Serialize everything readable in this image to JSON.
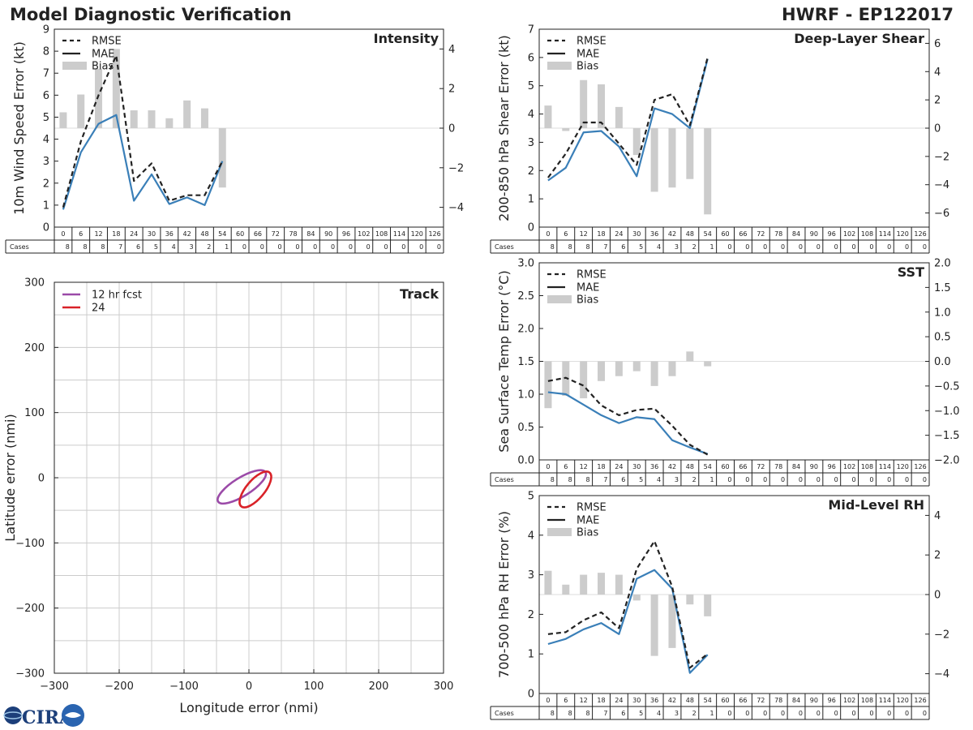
{
  "header": {
    "title": "Model Diagnostic Verification",
    "storm": "HWRF - EP122017"
  },
  "logo": {
    "text": "CIRA"
  },
  "legend_labels": {
    "rmse": "RMSE",
    "mae": "MAE",
    "bias": "Bias",
    "cases": "Cases"
  },
  "colors": {
    "mae": "#3a7fb8",
    "bias": "#cccccc",
    "rmse": "#222222",
    "track12": "#9b4aa8",
    "track24": "#d92228",
    "grid": "#cccccc"
  },
  "chart_data": [
    {
      "id": "intensity",
      "type": "line",
      "title": "Intensity",
      "ylabel": "10m Wind Speed Error (kt)",
      "ylim": [
        0,
        9
      ],
      "yticks": [
        0,
        1,
        2,
        3,
        4,
        5,
        6,
        7,
        8,
        9
      ],
      "y2lim": [
        -5,
        5
      ],
      "y2ticks": [
        -4,
        -2,
        0,
        2,
        4
      ],
      "y2ticklabels": [
        "−4",
        "−2",
        "0",
        "2",
        "4"
      ],
      "lead_times": [
        "0",
        "6",
        "12",
        "18",
        "24",
        "30",
        "36",
        "42",
        "48",
        "54",
        "60",
        "66",
        "72",
        "78",
        "84",
        "90",
        "96",
        "102",
        "108",
        "114",
        "120",
        "126"
      ],
      "cases": [
        "8",
        "8",
        "8",
        "7",
        "6",
        "5",
        "4",
        "3",
        "2",
        "1",
        "0",
        "0",
        "0",
        "0",
        "0",
        "0",
        "0",
        "0",
        "0",
        "0",
        "0",
        "0"
      ],
      "x": [
        0,
        6,
        12,
        18,
        24,
        30,
        36,
        42,
        48,
        54
      ],
      "rmse": [
        0.9,
        3.9,
        6.0,
        7.8,
        2.1,
        2.9,
        1.2,
        1.45,
        1.45,
        3.0
      ],
      "mae": [
        0.8,
        3.4,
        4.7,
        5.1,
        1.2,
        2.4,
        1.05,
        1.35,
        1.0,
        3.0
      ],
      "bias": [
        0.8,
        1.7,
        3.0,
        4.0,
        0.9,
        0.9,
        0.5,
        1.4,
        1.0,
        -3.0
      ]
    },
    {
      "id": "shear",
      "type": "line",
      "title": "Deep-Layer Shear",
      "ylabel": "200-850 hPa Shear Error (kt)",
      "ylim": [
        0,
        7
      ],
      "yticks": [
        0,
        1,
        2,
        3,
        4,
        5,
        6,
        7
      ],
      "y2lim": [
        -7,
        7
      ],
      "y2ticks": [
        -6,
        -4,
        -2,
        0,
        2,
        4,
        6
      ],
      "y2ticklabels": [
        "−6",
        "−4",
        "−2",
        "0",
        "2",
        "4",
        "6"
      ],
      "lead_times": [
        "0",
        "6",
        "12",
        "18",
        "24",
        "30",
        "36",
        "42",
        "48",
        "54",
        "60",
        "66",
        "72",
        "78",
        "84",
        "90",
        "96",
        "102",
        "108",
        "114",
        "120",
        "126"
      ],
      "cases": [
        "8",
        "8",
        "8",
        "7",
        "6",
        "5",
        "4",
        "3",
        "2",
        "1",
        "0",
        "0",
        "0",
        "0",
        "0",
        "0",
        "0",
        "0",
        "0",
        "0",
        "0",
        "0"
      ],
      "x": [
        0,
        6,
        12,
        18,
        24,
        30,
        36,
        42,
        48,
        54
      ],
      "rmse": [
        1.75,
        2.6,
        3.7,
        3.7,
        2.95,
        2.2,
        4.5,
        4.7,
        3.6,
        6.0
      ],
      "mae": [
        1.65,
        2.1,
        3.35,
        3.4,
        2.85,
        1.8,
        4.2,
        4.0,
        3.5,
        5.95
      ],
      "bias": [
        1.6,
        -0.2,
        3.4,
        3.1,
        1.5,
        -1.9,
        -4.5,
        -4.2,
        -3.6,
        -6.1
      ]
    },
    {
      "id": "sst",
      "type": "line",
      "title": "SST",
      "ylabel": "Sea Surface Temp Error (°C)",
      "ylim": [
        0,
        3
      ],
      "yticks": [
        0,
        0.5,
        1,
        1.5,
        2,
        2.5,
        3
      ],
      "yticklabels": [
        "0.0",
        "0.5",
        "1.0",
        "1.5",
        "2.0",
        "2.5",
        "3.0"
      ],
      "y2lim": [
        -2,
        2
      ],
      "y2ticks": [
        -2,
        -1.5,
        -1,
        -0.5,
        0,
        0.5,
        1,
        1.5,
        2
      ],
      "y2ticklabels": [
        "−2.0",
        "−1.5",
        "−1.0",
        "−0.5",
        "0.0",
        "0.5",
        "1.0",
        "1.5",
        "2.0"
      ],
      "lead_times": [
        "0",
        "6",
        "12",
        "18",
        "24",
        "30",
        "36",
        "42",
        "48",
        "54",
        "60",
        "66",
        "72",
        "78",
        "84",
        "90",
        "96",
        "102",
        "108",
        "114",
        "120",
        "126"
      ],
      "cases": [
        "8",
        "8",
        "8",
        "7",
        "6",
        "5",
        "4",
        "3",
        "2",
        "1",
        "0",
        "0",
        "0",
        "0",
        "0",
        "0",
        "0",
        "0",
        "0",
        "0",
        "0",
        "0"
      ],
      "x": [
        0,
        6,
        12,
        18,
        24,
        30,
        36,
        42,
        48,
        54
      ],
      "rmse": [
        1.2,
        1.25,
        1.13,
        0.83,
        0.68,
        0.76,
        0.78,
        0.52,
        0.23,
        0.08
      ],
      "mae": [
        1.03,
        1.0,
        0.84,
        0.68,
        0.56,
        0.65,
        0.62,
        0.3,
        0.19,
        0.09
      ],
      "bias": [
        -0.95,
        -0.7,
        -0.75,
        -0.4,
        -0.3,
        -0.2,
        -0.5,
        -0.3,
        0.2,
        -0.1
      ]
    },
    {
      "id": "rh",
      "type": "line",
      "title": "Mid-Level RH",
      "ylabel": "700-500 hPa RH Error (%)",
      "ylim": [
        0,
        5
      ],
      "yticks": [
        0,
        1,
        2,
        3,
        4,
        5
      ],
      "y2lim": [
        -5,
        5
      ],
      "y2ticks": [
        -4,
        -2,
        0,
        2,
        4
      ],
      "y2ticklabels": [
        "−4",
        "−2",
        "0",
        "2",
        "4"
      ],
      "lead_times": [
        "0",
        "6",
        "12",
        "18",
        "24",
        "30",
        "36",
        "42",
        "48",
        "54",
        "60",
        "66",
        "72",
        "78",
        "84",
        "90",
        "96",
        "102",
        "108",
        "114",
        "120",
        "126"
      ],
      "cases": [
        "8",
        "8",
        "8",
        "7",
        "6",
        "5",
        "4",
        "3",
        "2",
        "1",
        "0",
        "0",
        "0",
        "0",
        "0",
        "0",
        "0",
        "0",
        "0",
        "0",
        "0",
        "0"
      ],
      "x": [
        0,
        6,
        12,
        18,
        24,
        30,
        36,
        42,
        48,
        54
      ],
      "rmse": [
        1.5,
        1.55,
        1.85,
        2.05,
        1.65,
        3.15,
        3.85,
        2.7,
        0.65,
        1.0
      ],
      "mae": [
        1.25,
        1.38,
        1.62,
        1.78,
        1.5,
        2.9,
        3.12,
        2.65,
        0.52,
        0.98
      ],
      "bias": [
        1.2,
        0.5,
        1.0,
        1.1,
        1.0,
        -0.3,
        -3.1,
        -2.7,
        -0.5,
        -1.1
      ]
    },
    {
      "id": "track",
      "type": "scatter",
      "title": "Track",
      "xlabel": "Longitude error (nmi)",
      "ylabel": "Latitude error (nmi)",
      "xlim": [
        -300,
        300
      ],
      "ylim": [
        -300,
        300
      ],
      "ticks": [
        -300,
        -200,
        -100,
        0,
        100,
        200,
        300
      ],
      "ticklabels": [
        "−300",
        "−200",
        "−100",
        "0",
        "100",
        "200",
        "300"
      ],
      "ellipses": [
        {
          "label": "12 hr fcst",
          "color": "#9b4aa8",
          "cx": -11,
          "cy": -14,
          "rx": 43,
          "ry": 14,
          "angle": 32
        },
        {
          "label": "24",
          "color": "#d92228",
          "cx": 10,
          "cy": -18,
          "rx": 34,
          "ry": 14,
          "angle": 50
        }
      ]
    }
  ]
}
